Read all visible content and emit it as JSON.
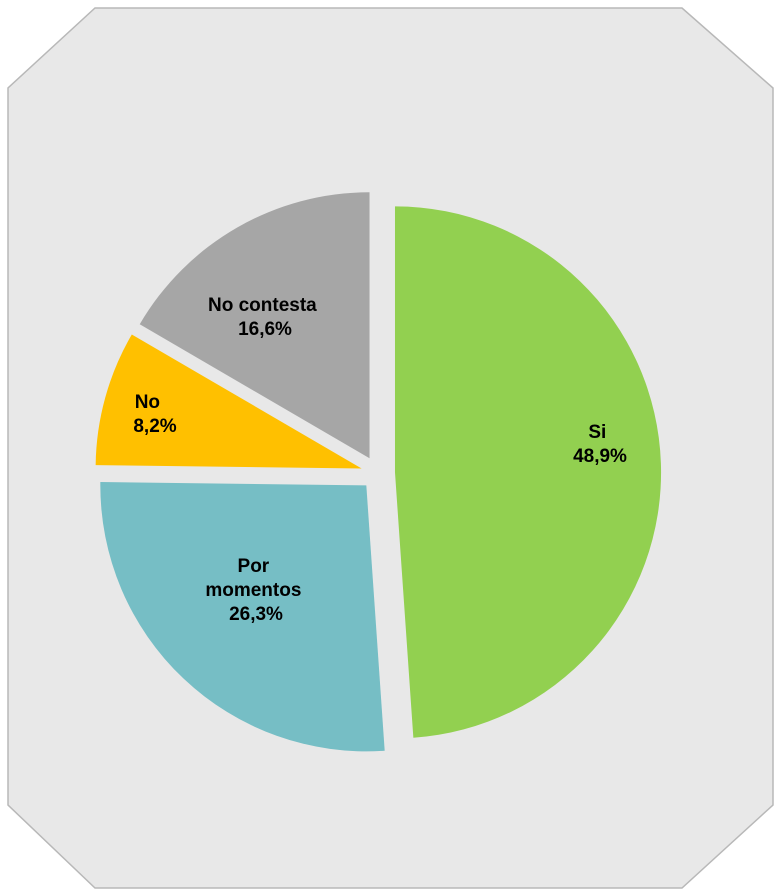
{
  "chart_data": {
    "type": "pie",
    "title": "",
    "start_angle_deg": -90,
    "direction": "clockwise",
    "background_color": "#e8e8e8",
    "border_color": "#b8b8b8",
    "slices": [
      {
        "label": "Si",
        "value_label": "48,9%",
        "value": 48.9,
        "color": "#92d050",
        "exploded": true
      },
      {
        "label": "Por momentos",
        "label_lines": [
          "Por",
          "momentos"
        ],
        "value_label": "26,3%",
        "value": 26.3,
        "color": "#76bec5",
        "exploded": true
      },
      {
        "label": "No",
        "value_label": "8,2%",
        "value": 8.2,
        "color": "#ffc000",
        "exploded": true
      },
      {
        "label": "No contesta",
        "value_label": "16,6%",
        "value": 16.6,
        "color": "#a6a6a6",
        "exploded": true
      }
    ]
  }
}
